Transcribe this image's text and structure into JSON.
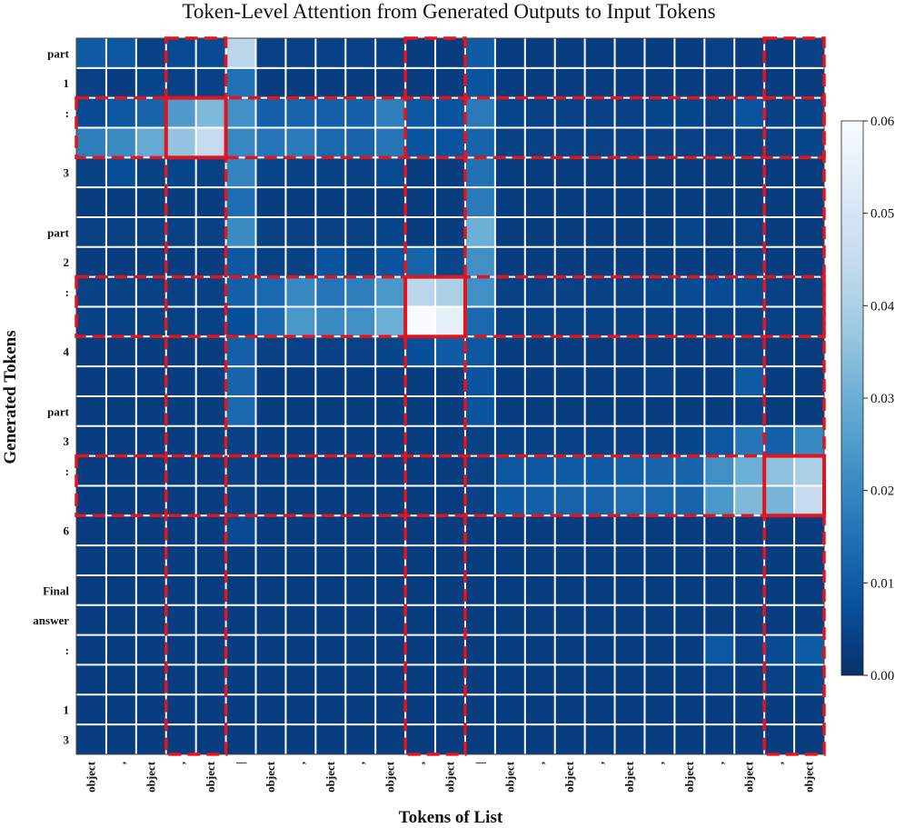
{
  "chart_data": {
    "type": "heatmap",
    "title": "Token-Level Attention from Generated Outputs to Input Tokens",
    "xlabel": "Tokens of List",
    "ylabel": "Generated Tokens",
    "x_tokens": [
      "object",
      ",",
      "object",
      ",",
      "object",
      "|",
      "object",
      ",",
      "object",
      ",",
      "object",
      ",",
      "object",
      "|",
      "object",
      ",",
      "object",
      ",",
      "object",
      ",",
      "object",
      ",",
      "object",
      ",",
      "object"
    ],
    "y_tokens": [
      "part",
      "1",
      ":",
      "",
      "3",
      "",
      "part",
      "2",
      ":",
      "",
      "4",
      "",
      "part",
      "3",
      ":",
      "",
      "6",
      "",
      "Final",
      "answer",
      ":",
      "",
      "1",
      "3"
    ],
    "colorbar": {
      "min": 0.0,
      "max": 0.06,
      "ticks": [
        "0.00",
        "0.01",
        "0.02",
        "0.03",
        "0.04",
        "0.05",
        "0.06"
      ]
    },
    "values": [
      [
        0.01,
        0.009,
        0.004,
        0.006,
        0.006,
        0.043,
        0.004,
        0.004,
        0.004,
        0.004,
        0.004,
        0.003,
        0.003,
        0.01,
        0.003,
        0.003,
        0.003,
        0.003,
        0.003,
        0.003,
        0.003,
        0.004,
        0.003,
        0.003,
        0.004
      ],
      [
        0.004,
        0.003,
        0.005,
        0.004,
        0.004,
        0.015,
        0.003,
        0.003,
        0.003,
        0.003,
        0.003,
        0.003,
        0.003,
        0.008,
        0.003,
        0.003,
        0.003,
        0.003,
        0.003,
        0.003,
        0.003,
        0.003,
        0.003,
        0.003,
        0.003
      ],
      [
        0.006,
        0.009,
        0.012,
        0.025,
        0.033,
        0.022,
        0.011,
        0.012,
        0.011,
        0.011,
        0.018,
        0.009,
        0.008,
        0.017,
        0.005,
        0.004,
        0.004,
        0.004,
        0.004,
        0.005,
        0.005,
        0.004,
        0.008,
        0.004,
        0.005
      ],
      [
        0.018,
        0.021,
        0.029,
        0.036,
        0.045,
        0.02,
        0.016,
        0.017,
        0.013,
        0.012,
        0.016,
        0.008,
        0.008,
        0.012,
        0.004,
        0.004,
        0.004,
        0.004,
        0.004,
        0.004,
        0.004,
        0.004,
        0.004,
        0.004,
        0.005
      ],
      [
        0.004,
        0.007,
        0.004,
        0.005,
        0.004,
        0.019,
        0.005,
        0.004,
        0.004,
        0.004,
        0.006,
        0.003,
        0.003,
        0.015,
        0.003,
        0.003,
        0.003,
        0.003,
        0.003,
        0.003,
        0.003,
        0.003,
        0.003,
        0.003,
        0.003
      ],
      [
        0.003,
        0.003,
        0.003,
        0.003,
        0.003,
        0.014,
        0.003,
        0.003,
        0.003,
        0.003,
        0.003,
        0.003,
        0.003,
        0.017,
        0.003,
        0.003,
        0.003,
        0.003,
        0.003,
        0.003,
        0.003,
        0.003,
        0.003,
        0.003,
        0.003
      ],
      [
        0.004,
        0.004,
        0.004,
        0.004,
        0.004,
        0.021,
        0.004,
        0.004,
        0.004,
        0.004,
        0.005,
        0.003,
        0.003,
        0.03,
        0.003,
        0.003,
        0.003,
        0.003,
        0.003,
        0.003,
        0.005,
        0.003,
        0.004,
        0.003,
        0.003
      ],
      [
        0.003,
        0.003,
        0.003,
        0.003,
        0.003,
        0.009,
        0.004,
        0.004,
        0.008,
        0.005,
        0.008,
        0.012,
        0.005,
        0.022,
        0.003,
        0.003,
        0.003,
        0.003,
        0.003,
        0.003,
        0.003,
        0.003,
        0.004,
        0.003,
        0.003
      ],
      [
        0.004,
        0.004,
        0.004,
        0.004,
        0.004,
        0.011,
        0.013,
        0.02,
        0.016,
        0.018,
        0.024,
        0.043,
        0.04,
        0.022,
        0.004,
        0.004,
        0.004,
        0.004,
        0.004,
        0.005,
        0.006,
        0.006,
        0.006,
        0.004,
        0.004
      ],
      [
        0.004,
        0.004,
        0.004,
        0.004,
        0.004,
        0.007,
        0.013,
        0.024,
        0.021,
        0.022,
        0.03,
        0.06,
        0.055,
        0.013,
        0.004,
        0.004,
        0.004,
        0.004,
        0.004,
        0.004,
        0.004,
        0.004,
        0.004,
        0.004,
        0.004
      ],
      [
        0.003,
        0.003,
        0.003,
        0.003,
        0.003,
        0.011,
        0.004,
        0.004,
        0.004,
        0.004,
        0.005,
        0.007,
        0.01,
        0.009,
        0.003,
        0.003,
        0.003,
        0.003,
        0.003,
        0.003,
        0.003,
        0.003,
        0.004,
        0.003,
        0.003
      ],
      [
        0.003,
        0.003,
        0.003,
        0.003,
        0.003,
        0.012,
        0.003,
        0.003,
        0.003,
        0.003,
        0.003,
        0.003,
        0.003,
        0.008,
        0.003,
        0.003,
        0.003,
        0.003,
        0.003,
        0.004,
        0.003,
        0.003,
        0.01,
        0.003,
        0.003
      ],
      [
        0.003,
        0.003,
        0.003,
        0.003,
        0.003,
        0.013,
        0.003,
        0.003,
        0.003,
        0.003,
        0.003,
        0.003,
        0.003,
        0.008,
        0.003,
        0.003,
        0.003,
        0.003,
        0.003,
        0.003,
        0.003,
        0.003,
        0.004,
        0.003,
        0.003
      ],
      [
        0.003,
        0.003,
        0.003,
        0.003,
        0.003,
        0.004,
        0.003,
        0.003,
        0.003,
        0.003,
        0.003,
        0.003,
        0.003,
        0.004,
        0.004,
        0.004,
        0.004,
        0.004,
        0.004,
        0.004,
        0.005,
        0.009,
        0.016,
        0.011,
        0.02
      ],
      [
        0.003,
        0.003,
        0.003,
        0.003,
        0.003,
        0.004,
        0.003,
        0.003,
        0.003,
        0.003,
        0.003,
        0.003,
        0.003,
        0.004,
        0.009,
        0.009,
        0.01,
        0.01,
        0.011,
        0.012,
        0.012,
        0.022,
        0.03,
        0.035,
        0.04
      ],
      [
        0.003,
        0.003,
        0.003,
        0.003,
        0.003,
        0.004,
        0.003,
        0.003,
        0.003,
        0.003,
        0.003,
        0.003,
        0.003,
        0.004,
        0.01,
        0.011,
        0.012,
        0.012,
        0.014,
        0.013,
        0.012,
        0.024,
        0.033,
        0.032,
        0.045
      ],
      [
        0.003,
        0.003,
        0.003,
        0.003,
        0.003,
        0.006,
        0.003,
        0.003,
        0.003,
        0.003,
        0.003,
        0.003,
        0.003,
        0.003,
        0.003,
        0.003,
        0.003,
        0.003,
        0.003,
        0.003,
        0.003,
        0.003,
        0.003,
        0.003,
        0.003
      ],
      [
        0.003,
        0.003,
        0.003,
        0.003,
        0.003,
        0.003,
        0.003,
        0.003,
        0.003,
        0.003,
        0.003,
        0.003,
        0.003,
        0.003,
        0.003,
        0.003,
        0.003,
        0.003,
        0.003,
        0.003,
        0.003,
        0.003,
        0.003,
        0.003,
        0.003
      ],
      [
        0.003,
        0.003,
        0.003,
        0.003,
        0.003,
        0.003,
        0.003,
        0.003,
        0.003,
        0.003,
        0.003,
        0.003,
        0.003,
        0.003,
        0.003,
        0.003,
        0.003,
        0.003,
        0.003,
        0.003,
        0.003,
        0.003,
        0.003,
        0.003,
        0.003
      ],
      [
        0.003,
        0.003,
        0.003,
        0.003,
        0.003,
        0.003,
        0.003,
        0.003,
        0.003,
        0.003,
        0.003,
        0.003,
        0.003,
        0.003,
        0.003,
        0.003,
        0.003,
        0.003,
        0.003,
        0.003,
        0.003,
        0.003,
        0.003,
        0.003,
        0.003
      ],
      [
        0.003,
        0.003,
        0.003,
        0.003,
        0.003,
        0.003,
        0.003,
        0.003,
        0.003,
        0.003,
        0.003,
        0.003,
        0.003,
        0.003,
        0.003,
        0.003,
        0.003,
        0.003,
        0.003,
        0.003,
        0.003,
        0.009,
        0.004,
        0.006,
        0.01
      ],
      [
        0.003,
        0.003,
        0.003,
        0.003,
        0.003,
        0.003,
        0.003,
        0.003,
        0.003,
        0.003,
        0.003,
        0.003,
        0.003,
        0.003,
        0.003,
        0.003,
        0.003,
        0.003,
        0.003,
        0.003,
        0.003,
        0.004,
        0.003,
        0.004,
        0.005
      ],
      [
        0.003,
        0.003,
        0.003,
        0.003,
        0.003,
        0.003,
        0.003,
        0.003,
        0.003,
        0.003,
        0.003,
        0.003,
        0.003,
        0.003,
        0.003,
        0.003,
        0.003,
        0.003,
        0.003,
        0.003,
        0.003,
        0.003,
        0.003,
        0.003,
        0.003
      ],
      [
        0.003,
        0.003,
        0.003,
        0.003,
        0.003,
        0.003,
        0.003,
        0.003,
        0.003,
        0.003,
        0.003,
        0.003,
        0.003,
        0.003,
        0.003,
        0.003,
        0.003,
        0.003,
        0.003,
        0.003,
        0.003,
        0.003,
        0.003,
        0.003,
        0.003
      ]
    ],
    "highlight_column_groups": [
      [
        3,
        4
      ],
      [
        11,
        12
      ],
      [
        23,
        24
      ]
    ],
    "highlight_row_groups": [
      [
        2,
        3
      ],
      [
        8,
        9
      ],
      [
        14,
        15
      ]
    ],
    "highlight_cells": [
      {
        "rows": [
          2,
          3
        ],
        "cols": [
          3,
          4
        ]
      },
      {
        "rows": [
          8,
          9
        ],
        "cols": [
          11,
          12
        ]
      },
      {
        "rows": [
          14,
          15
        ],
        "cols": [
          23,
          24
        ]
      }
    ],
    "colors": {
      "scale": [
        "#08306b",
        "#08519c",
        "#2171b5",
        "#4292c6",
        "#6baed6",
        "#9ecae1",
        "#c6dbef",
        "#deebf7",
        "#f7fbff"
      ],
      "highlight": "#e3141b",
      "grid": "#ffffff"
    }
  }
}
